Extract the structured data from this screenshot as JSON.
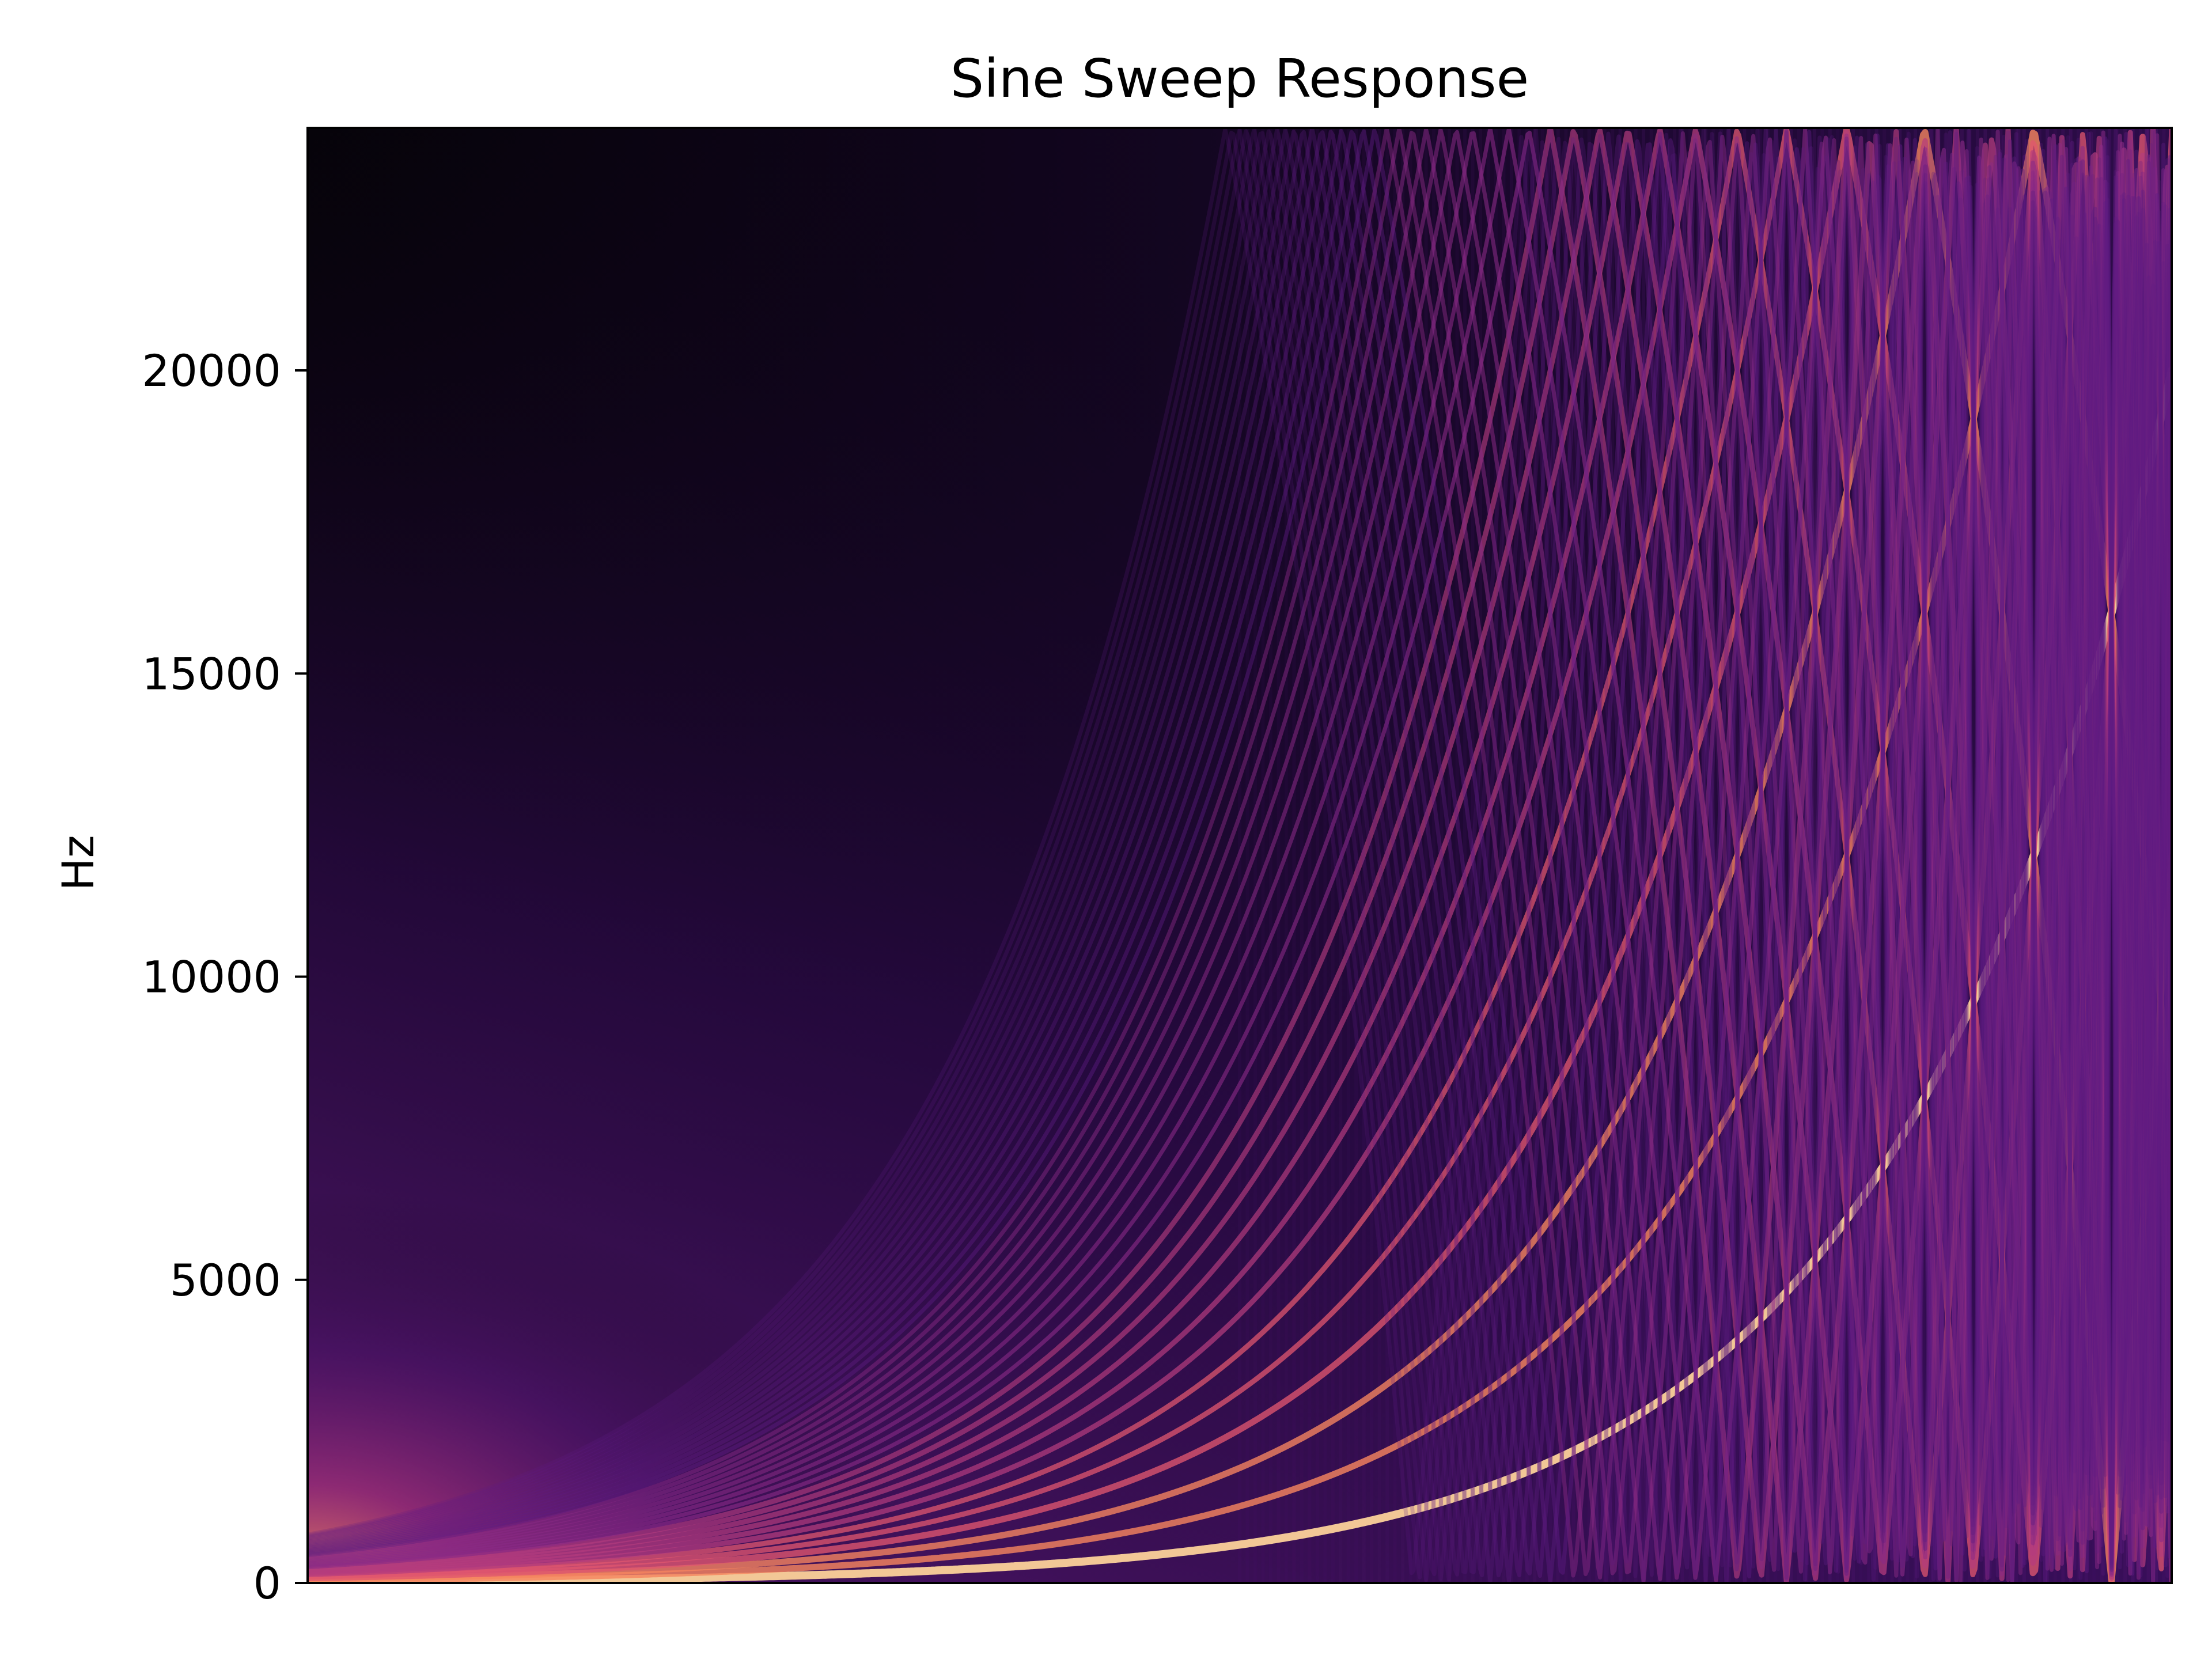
{
  "chart_data": {
    "type": "heatmap",
    "title": "Sine Sweep Response",
    "xlabel": "",
    "ylabel": "Hz",
    "ylim": [
      0,
      24000
    ],
    "yticks": [
      {
        "value": 0,
        "label": "0"
      },
      {
        "value": 5000,
        "label": "5000"
      },
      {
        "value": 10000,
        "label": "10000"
      },
      {
        "value": 15000,
        "label": "15000"
      },
      {
        "value": 20000,
        "label": "20000"
      }
    ],
    "xticks": [],
    "colormap": "magma",
    "background_color": "#050308",
    "sweep": {
      "fundamental_start_hz": 20,
      "fundamental_end_hz": 20000,
      "harmonics": 40,
      "nyquist_hz": 24000
    },
    "grid": false,
    "legend": "none"
  }
}
